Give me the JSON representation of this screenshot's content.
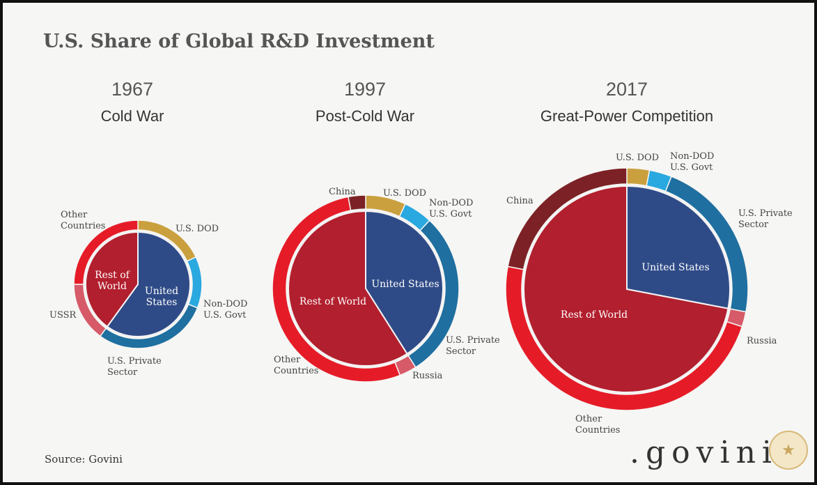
{
  "title": "U.S. Share of Global R&D Investment",
  "source": "Source: Govini",
  "logo_text": ".govini",
  "colors": {
    "us_dod": "#caa03f",
    "non_dod": "#2aa8e0",
    "us_private": "#1f6fa0",
    "ussr_russia": "#d65a68",
    "china": "#7c2226",
    "other_countries": "#e51c28",
    "united_states": "#2f4b87",
    "rest_of_world": "#b21f2e"
  },
  "chart_data": [
    {
      "type": "pie",
      "subtype": "nested-donut",
      "year": "1967",
      "era": "Cold War",
      "inner": [
        {
          "label": "United States",
          "value": 60
        },
        {
          "label": "Rest of World",
          "value": 40
        }
      ],
      "outer": [
        {
          "label": "U.S. DOD",
          "value": 18
        },
        {
          "label": "Non-DOD U.S. Govt",
          "value": 13
        },
        {
          "label": "U.S. Private Sector",
          "value": 29
        },
        {
          "label": "USSR",
          "value": 15
        },
        {
          "label": "Other Countries",
          "value": 25
        }
      ]
    },
    {
      "type": "pie",
      "subtype": "nested-donut",
      "year": "1997",
      "era": "Post-Cold War",
      "inner": [
        {
          "label": "United States",
          "value": 41
        },
        {
          "label": "Rest of World",
          "value": 59
        }
      ],
      "outer": [
        {
          "label": "U.S. DOD",
          "value": 7
        },
        {
          "label": "Non-DOD U.S. Govt",
          "value": 5
        },
        {
          "label": "U.S. Private Sector",
          "value": 29
        },
        {
          "label": "Russia",
          "value": 3
        },
        {
          "label": "Other Countries",
          "value": 53
        },
        {
          "label": "China",
          "value": 3
        }
      ]
    },
    {
      "type": "pie",
      "subtype": "nested-donut",
      "year": "2017",
      "era": "Great-Power Competition",
      "inner": [
        {
          "label": "United States",
          "value": 28
        },
        {
          "label": "Rest of World",
          "value": 72
        }
      ],
      "outer": [
        {
          "label": "U.S. DOD",
          "value": 3
        },
        {
          "label": "Non-DOD U.S. Govt",
          "value": 3
        },
        {
          "label": "U.S. Private Sector",
          "value": 22
        },
        {
          "label": "Russia",
          "value": 2
        },
        {
          "label": "Other Countries",
          "value": 48
        },
        {
          "label": "China",
          "value": 22
        }
      ]
    }
  ]
}
